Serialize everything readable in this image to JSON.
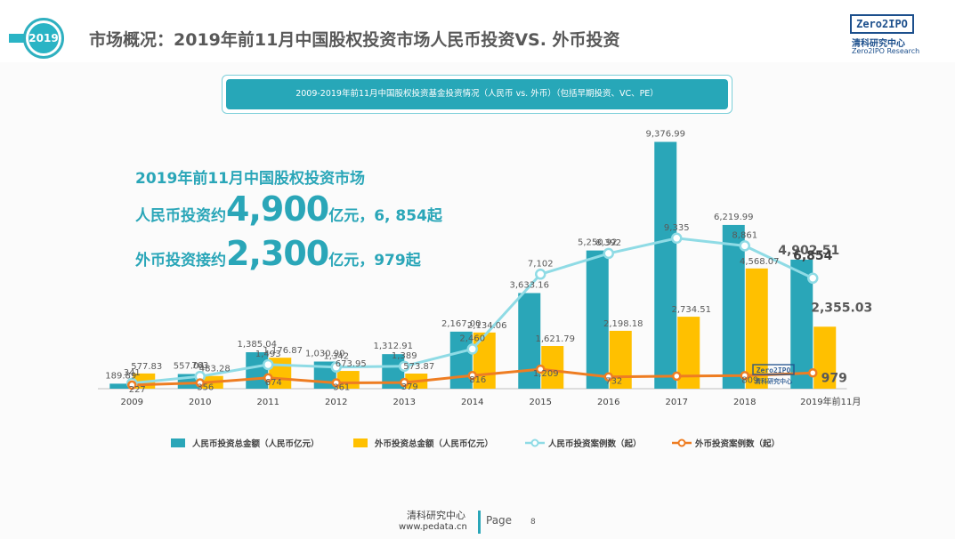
{
  "header": {
    "badge_year": "2019",
    "title": "市场概况：2019年前11月中国股权投资市场人民币投资VS. 外币投资"
  },
  "logo": {
    "mark": "Zero2IPO",
    "name_cn": "清科研究中心",
    "name_en": "Zero2IPO Research"
  },
  "callout": {
    "line1": "2019年前11月中国股权投资市场",
    "rmb_prefix": "人民币投资约",
    "rmb_amount": "4,900",
    "rmb_suffix": "亿元，6, 854起",
    "fx_prefix": "外币投资接约",
    "fx_amount": "2,300",
    "fx_suffix": "亿元，979起"
  },
  "footer": {
    "org": "清科研究中心",
    "url": "www.pedata.cn",
    "page_label": "Page",
    "page_number": "8"
  },
  "colors": {
    "rmb_amount": "#2aa6b8",
    "fx_amount": "#ffc000",
    "rmb_deals": "#8fdbe5",
    "fx_deals": "#ee7d22",
    "header_accent": "#2ab4c5"
  },
  "chart_data": {
    "type": "bar",
    "title": "2009-2019年前11月中国股权投资基金投资情况（人民币 vs. 外币）（包括早期投资、VC、PE）",
    "categories": [
      "2009",
      "2010",
      "2011",
      "2012",
      "2013",
      "2014",
      "2015",
      "2016",
      "2017",
      "2018",
      "2019年前11月"
    ],
    "series": [
      {
        "name": "人民币投资总金额（人民币亿元）",
        "kind": "bar",
        "axis": "amount",
        "values": [
          189.89,
          557.04,
          1385.04,
          1030.9,
          1312.91,
          2167.0,
          3633.16,
          5250.92,
          9376.99,
          6219.99,
          4902.51
        ],
        "labels": [
          "189.89",
          "557.04",
          "1,385.04",
          "1,030.90",
          "1,312.91",
          "2,167.00",
          "3,633.16",
          "5,250.92",
          "9,376.99",
          "6,219.99",
          "4,902.51"
        ]
      },
      {
        "name": "外币投资总金额（人民币亿元）",
        "kind": "bar",
        "axis": "amount",
        "values": [
          577.83,
          483.28,
          1176.87,
          673.95,
          573.87,
          2134.06,
          1621.79,
          2198.18,
          2734.51,
          4568.07,
          2355.03
        ],
        "labels": [
          "577.83",
          "483.28",
          "1,176.87",
          "673.95",
          "573.87",
          "2,134.06",
          "1,621.79",
          "2,198.18",
          "2,734.51",
          "4,568.07",
          "2,355.03"
        ]
      },
      {
        "name": "人民币投资案例数（起）",
        "kind": "line",
        "axis": "count",
        "values": [
          341,
          763,
          1493,
          1342,
          1389,
          2460,
          7102,
          8392,
          9335,
          8861,
          6854
        ],
        "labels": [
          "341",
          "763",
          "1,493",
          "1,342",
          "1,389",
          "2,460",
          "7,102",
          "8,392",
          "9,335",
          "8,861",
          "6,854"
        ]
      },
      {
        "name": "外币投资案例数（起）",
        "kind": "line",
        "axis": "count",
        "values": [
          227,
          356,
          674,
          361,
          379,
          816,
          1209,
          732,
          778,
          809,
          979
        ],
        "labels": [
          "227",
          "356",
          "674",
          "361",
          "379",
          "816",
          "1,209",
          "732",
          "",
          "809",
          "979"
        ]
      }
    ],
    "amount_axis_range": [
      0,
      9800
    ],
    "count_axis_range": [
      0,
      16000
    ],
    "grid": false,
    "legend_position": "bottom"
  }
}
